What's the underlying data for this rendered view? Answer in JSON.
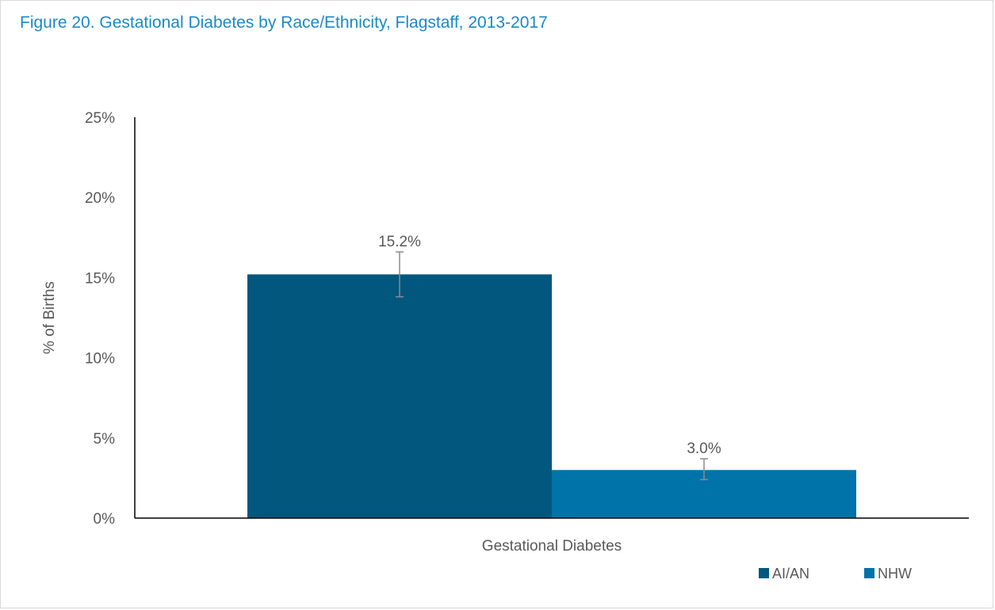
{
  "figure": {
    "title": "Figure 20. Gestational Diabetes by Race/Ethnicity, Flagstaff, 2013-2017"
  },
  "chart_data": {
    "type": "bar",
    "title": "Figure 20. Gestational Diabetes by Race/Ethnicity, Flagstaff, 2013-2017",
    "categories": [
      "Gestational Diabetes"
    ],
    "xlabel": "",
    "ylabel": "% of Births",
    "ylim": [
      0,
      25
    ],
    "yticks": [
      0,
      5,
      10,
      15,
      20,
      25
    ],
    "ytick_labels": [
      "0%",
      "5%",
      "10%",
      "15%",
      "20%",
      "25%"
    ],
    "grid": false,
    "legend_position": "bottom-right",
    "series": [
      {
        "name": "AI/AN",
        "color": "#02577e",
        "values": [
          15.2
        ],
        "data_labels": [
          "15.2%"
        ],
        "error": [
          {
            "low": 13.8,
            "high": 16.6
          }
        ]
      },
      {
        "name": "NHW",
        "color": "#0073a9",
        "values": [
          3.0
        ],
        "data_labels": [
          "3.0%"
        ],
        "error": [
          {
            "low": 2.4,
            "high": 3.7
          }
        ]
      }
    ]
  }
}
